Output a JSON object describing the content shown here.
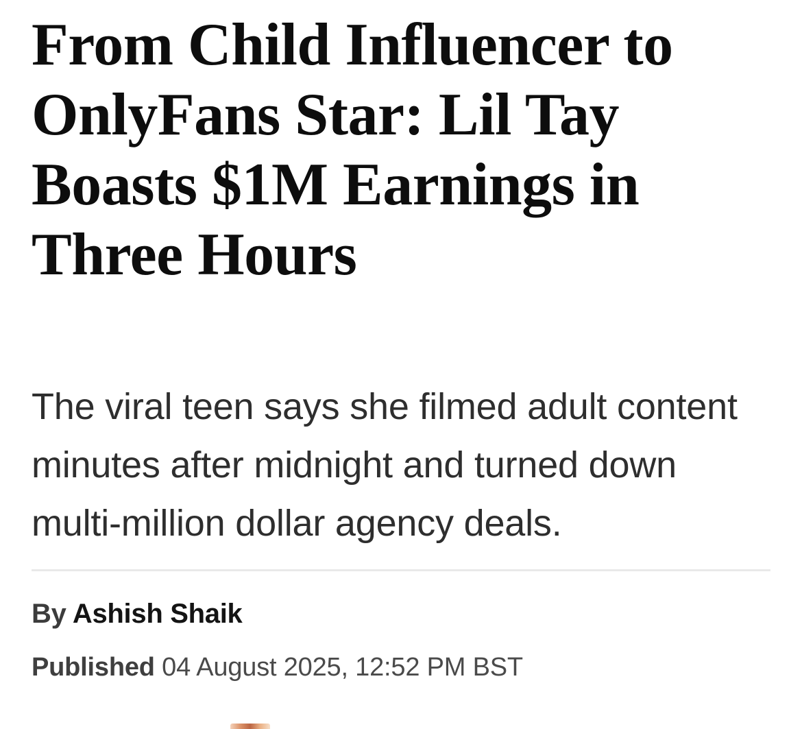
{
  "article": {
    "headline": {
      "full": "From Child Influencer to OnlyFans Star: Lil Tay Boasts $1M Earnings in Three Hours",
      "lines": [
        "From Child Influencer to",
        "OnlyFans Star: Lil Tay",
        "Boasts $1M Earnings in",
        "Three Hours"
      ]
    },
    "subheadline": {
      "full": "The viral teen says she filmed adult content minutes after midnight and turned down multi-million dollar agency deals.",
      "lines": [
        "The viral teen says she filmed adult content",
        "minutes after midnight and turned down",
        "multi-million dollar agency deals."
      ]
    },
    "byline": {
      "prefix": "By",
      "author": "Ashish Shaik"
    },
    "published": {
      "label": "Published",
      "datetime": "04 August 2025, 12:52 PM BST"
    }
  },
  "colors": {
    "background": "#ffffff",
    "headline": "#0d0d0d",
    "subheadline": "#2e2e2e",
    "byline_prefix": "#3c3c3c",
    "author": "#141414",
    "published_label": "#3f3f3f",
    "published_date": "#4a4a4a",
    "divider": "#e9e9e9"
  }
}
